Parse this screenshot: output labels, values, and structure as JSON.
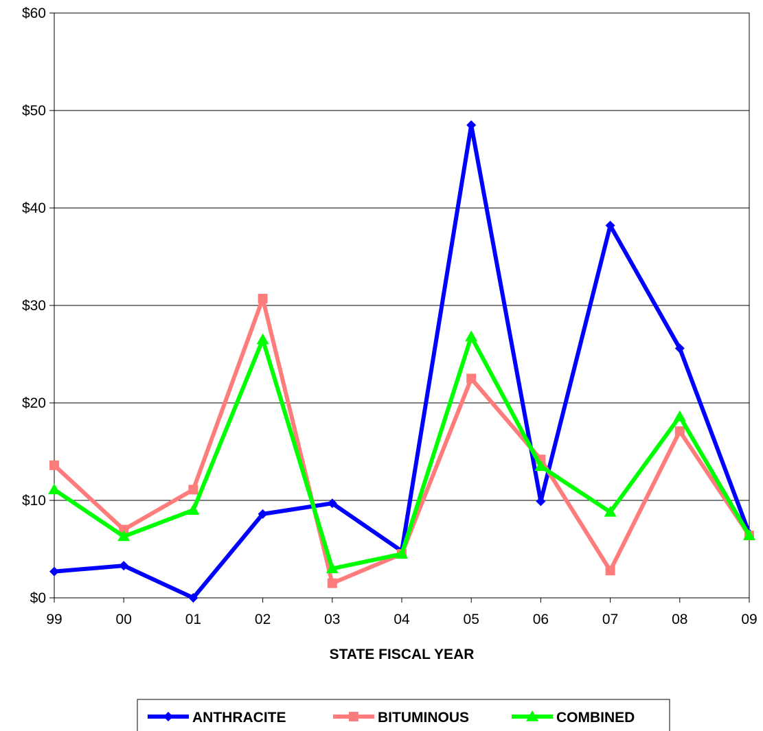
{
  "chart_data": {
    "type": "line",
    "xlabel": "STATE FISCAL YEAR",
    "ylabel": "",
    "categories": [
      "99",
      "00",
      "01",
      "02",
      "03",
      "04",
      "05",
      "06",
      "07",
      "08",
      "09"
    ],
    "y_ticks": [
      "$0",
      "$10",
      "$20",
      "$30",
      "$40",
      "$50",
      "$60"
    ],
    "ylim": [
      0,
      60
    ],
    "grid": "horizontal",
    "legend_position": "bottom",
    "series": [
      {
        "name": "ANTHRACITE",
        "color": "#0000ff",
        "marker": "diamond",
        "values": [
          2.7,
          3.3,
          0.0,
          8.6,
          9.7,
          4.8,
          48.5,
          9.9,
          38.2,
          25.6,
          6.6
        ]
      },
      {
        "name": "BITUMINOUS",
        "color": "#ff7c7c",
        "marker": "square",
        "values": [
          13.6,
          7.0,
          11.1,
          30.7,
          1.5,
          4.5,
          22.5,
          14.2,
          2.8,
          17.1,
          6.4
        ]
      },
      {
        "name": "COMBINED",
        "color": "#00ff00",
        "marker": "triangle",
        "values": [
          11.1,
          6.3,
          9.0,
          26.5,
          3.0,
          4.5,
          26.8,
          13.5,
          8.8,
          18.6,
          6.4
        ]
      }
    ]
  }
}
